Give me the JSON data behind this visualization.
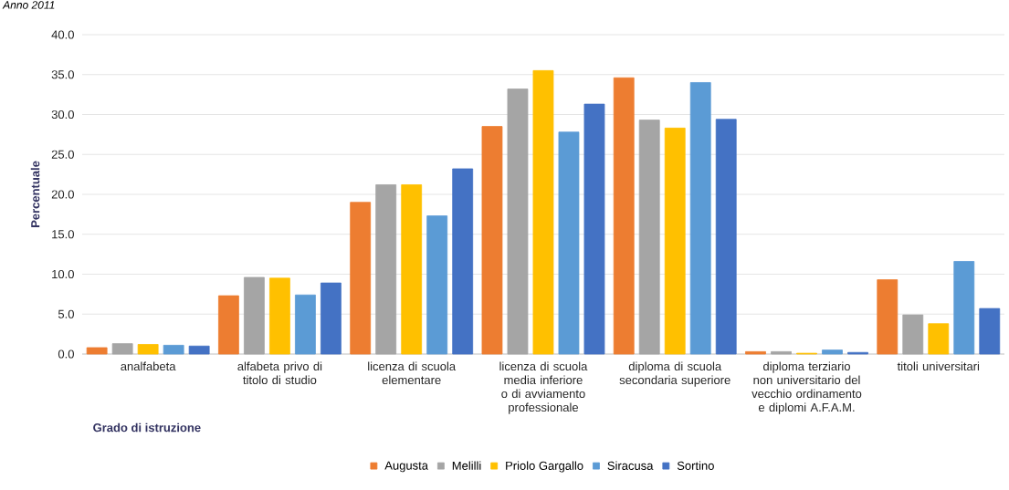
{
  "chart_data": {
    "type": "bar",
    "title": "Anno 2011",
    "xlabel": "Grado di istruzione",
    "ylabel": "Percentuale",
    "categories": [
      "analfabeta",
      "alfabeta privo di titolo di studio",
      "licenza di scuola elementare",
      "licenza di scuola media inferiore o di avviamento professionale",
      "diploma di scuola secondaria superiore",
      "diploma terziario non universitario del vecchio ordinamento e diplomi A.F.A.M.",
      "titoli universitari"
    ],
    "series": [
      {
        "name": "Augusta",
        "color": "#ed7d31",
        "values": [
          0.8,
          7.3,
          19.0,
          28.5,
          34.6,
          0.3,
          9.3
        ]
      },
      {
        "name": "Melilli",
        "color": "#a5a5a5",
        "values": [
          1.3,
          9.6,
          21.2,
          33.2,
          29.3,
          0.3,
          4.9
        ]
      },
      {
        "name": "Priolo Gargallo",
        "color": "#ffc000",
        "values": [
          1.2,
          9.5,
          21.2,
          35.5,
          28.3,
          0.1,
          3.8
        ]
      },
      {
        "name": "Siracusa",
        "color": "#5b9bd5",
        "values": [
          1.1,
          7.4,
          17.3,
          27.8,
          34.0,
          0.5,
          11.6
        ]
      },
      {
        "name": "Sortino",
        "color": "#4472c4",
        "values": [
          1.0,
          8.9,
          23.2,
          31.3,
          29.4,
          0.2,
          5.7
        ]
      }
    ],
    "ylim": [
      0,
      40
    ],
    "yticks": [
      {
        "value": 0,
        "label": "0.0"
      },
      {
        "value": 5,
        "label": "5.0"
      },
      {
        "value": 10,
        "label": "10.0"
      },
      {
        "value": 15,
        "label": "15.0"
      },
      {
        "value": 20,
        "label": "20.0"
      },
      {
        "value": 25,
        "label": "25.0"
      },
      {
        "value": 30,
        "label": "30.0"
      },
      {
        "value": 35,
        "label": "35.0"
      },
      {
        "value": 40,
        "label": "40.0"
      }
    ],
    "grid": "y",
    "legend": "bottom"
  }
}
